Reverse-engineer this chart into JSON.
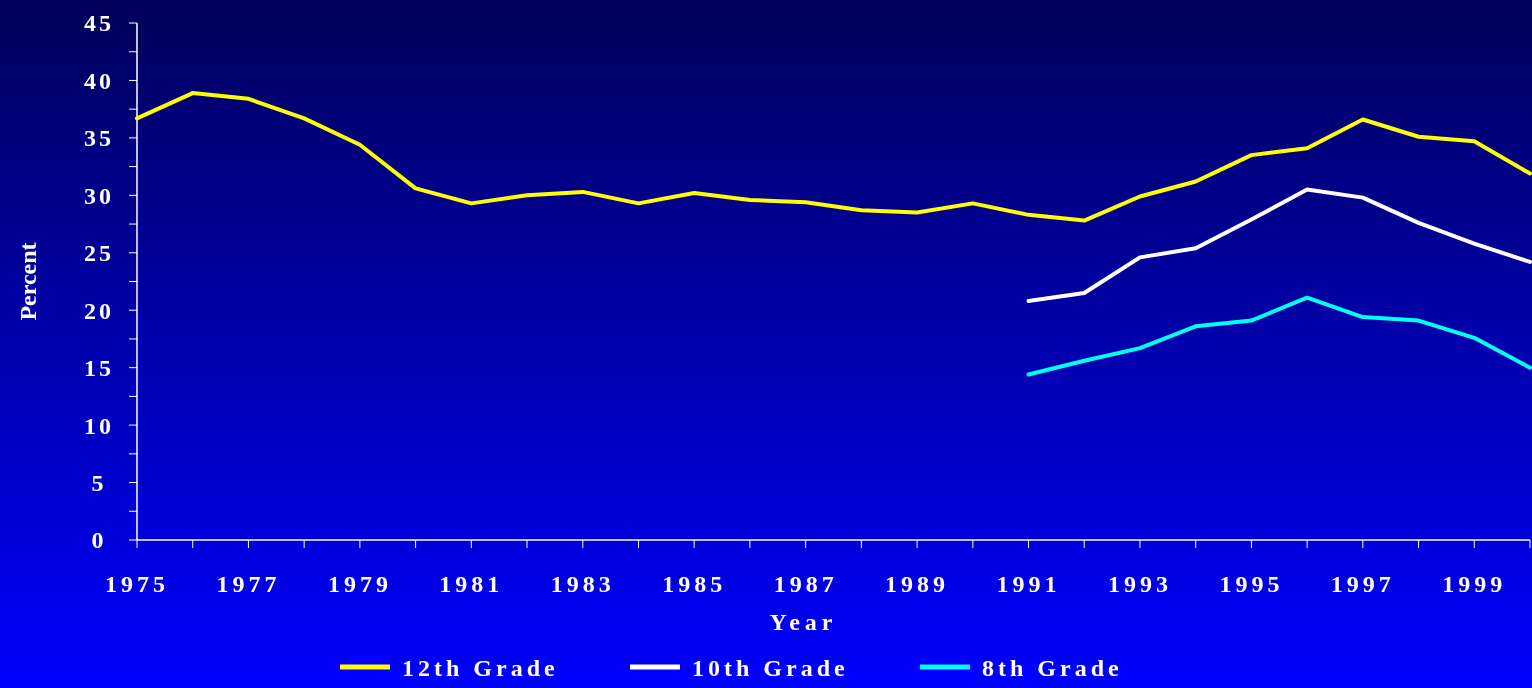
{
  "chart_data": {
    "type": "line",
    "xlabel": "Year",
    "ylabel": "Percent",
    "x": [
      1975,
      1976,
      1977,
      1978,
      1979,
      1980,
      1981,
      1982,
      1983,
      1984,
      1985,
      1986,
      1987,
      1988,
      1989,
      1990,
      1991,
      1992,
      1993,
      1994,
      1995,
      1996,
      1997,
      1998,
      1999,
      2000
    ],
    "xlim": [
      1975,
      2000
    ],
    "xticks": [
      1975,
      {
        "value": 1976,
        "label": null
      },
      1977,
      {
        "value": 1978,
        "label": null
      },
      1979,
      {
        "value": 1980,
        "label": null
      },
      1981,
      {
        "value": 1982,
        "label": null
      },
      1983,
      {
        "value": 1984,
        "label": null
      },
      1985,
      {
        "value": 1986,
        "label": null
      },
      1987,
      {
        "value": 1988,
        "label": null
      },
      1989,
      {
        "value": 1990,
        "label": null
      },
      1991,
      {
        "value": 1992,
        "label": null
      },
      1993,
      {
        "value": 1994,
        "label": null
      },
      1995,
      {
        "value": 1996,
        "label": null
      },
      1997,
      {
        "value": 1998,
        "label": null
      },
      1999,
      {
        "value": 2000,
        "label": null
      }
    ],
    "ylim": [
      0,
      45
    ],
    "yticks": [
      0,
      {
        "value": 2.5,
        "label": null
      },
      5,
      {
        "value": 7.5,
        "label": null
      },
      10,
      {
        "value": 12.5,
        "label": null
      },
      15,
      {
        "value": 17.5,
        "label": null
      },
      20,
      {
        "value": 22.5,
        "label": null
      },
      25,
      {
        "value": 27.5,
        "label": null
      },
      30,
      {
        "value": 32.5,
        "label": null
      },
      35,
      {
        "value": 37.5,
        "label": null
      },
      40,
      {
        "value": 42.5,
        "label": null
      },
      45
    ],
    "series": [
      {
        "name": "12th Grade",
        "color": "#ffff00",
        "values": [
          36.7,
          38.9,
          38.4,
          36.7,
          34.4,
          30.6,
          29.3,
          30.0,
          30.3,
          29.3,
          30.2,
          29.6,
          29.4,
          28.7,
          28.5,
          29.3,
          28.3,
          27.8,
          29.9,
          31.2,
          33.5,
          34.1,
          36.6,
          35.1,
          34.7,
          31.9
        ]
      },
      {
        "name": "10th Grade",
        "color": "#ffffff",
        "values": [
          null,
          null,
          null,
          null,
          null,
          null,
          null,
          null,
          null,
          null,
          null,
          null,
          null,
          null,
          null,
          null,
          20.8,
          21.5,
          24.6,
          25.4,
          27.9,
          30.5,
          29.8,
          27.6,
          25.8,
          24.2
        ]
      },
      {
        "name": "8th Grade",
        "color": "#00ffff",
        "values": [
          null,
          null,
          null,
          null,
          null,
          null,
          null,
          null,
          null,
          null,
          null,
          null,
          null,
          null,
          null,
          null,
          14.4,
          15.6,
          16.7,
          18.6,
          19.1,
          21.1,
          19.4,
          19.1,
          17.6,
          15.0
        ]
      }
    ],
    "legend": "bottom",
    "grid": false,
    "marker": "none",
    "line_style": "solid"
  }
}
